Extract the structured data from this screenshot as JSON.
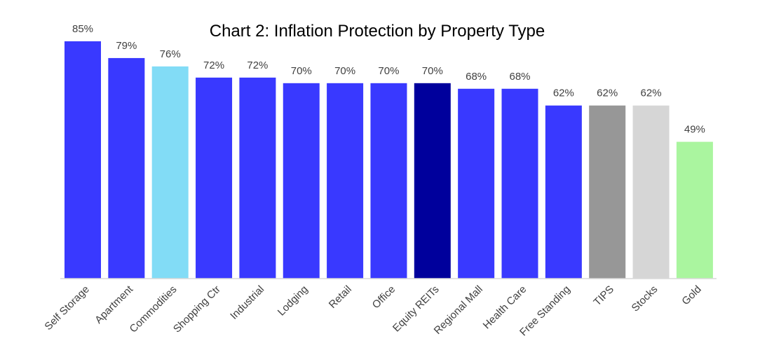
{
  "chart_data": {
    "type": "bar",
    "title": "Chart 2: Inflation Protection by Property Type",
    "xlabel": "",
    "ylabel": "",
    "ylim": [
      0,
      85
    ],
    "grid": false,
    "legend": "none",
    "categories": [
      "Self Storage",
      "Apartment",
      "Commodities",
      "Shopping Ctr",
      "Industrial",
      "Lodging",
      "Retail",
      "Office",
      "Equity REITs",
      "Regional Mall",
      "Health Care",
      "Free Standing",
      "TIPS",
      "Stocks",
      "Gold"
    ],
    "values": [
      85,
      79,
      76,
      72,
      72,
      70,
      70,
      70,
      70,
      68,
      68,
      62,
      62,
      62,
      49
    ],
    "data_labels": [
      "85%",
      "79%",
      "76%",
      "72%",
      "72%",
      "70%",
      "70%",
      "70%",
      "70%",
      "68%",
      "68%",
      "62%",
      "62%",
      "62%",
      "49%"
    ],
    "colors": [
      "#3939ff",
      "#3939ff",
      "#82dcf6",
      "#3939ff",
      "#3939ff",
      "#3939ff",
      "#3939ff",
      "#3939ff",
      "#00009c",
      "#3939ff",
      "#3939ff",
      "#3939ff",
      "#979797",
      "#d6d6d6",
      "#aaf59f"
    ],
    "axis_color": "#d9d9d9"
  }
}
